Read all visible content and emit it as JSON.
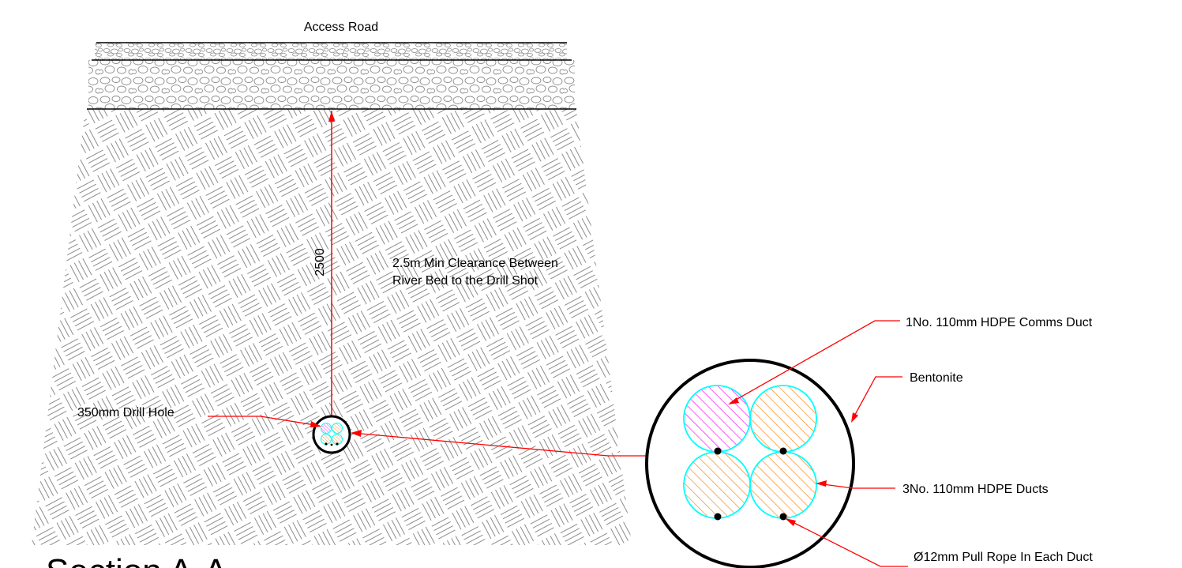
{
  "labels": {
    "access_road": "Access Road",
    "dimension_value": "2500",
    "clearance_line1": "2.5m Min Clearance Between",
    "clearance_line2": "River Bed  to the Drill Shot",
    "drill_hole": "350mm Drill Hole",
    "comms_duct": "1No. 110mm HDPE Comms Duct",
    "bentonite": "Bentonite",
    "hdpe_ducts": "3No. 110mm HDPE  Ducts",
    "pull_rope": "Ø12mm Pull Rope In Each Duct",
    "section_title": "Section A-A"
  },
  "colors": {
    "leader": "#ff0000",
    "duct_outline": "#00ffff",
    "comms_hatch": "#ff00ff",
    "duct_hatch": "#ff8000",
    "line": "#000000",
    "hatch_grey": "#8c8c8c"
  }
}
